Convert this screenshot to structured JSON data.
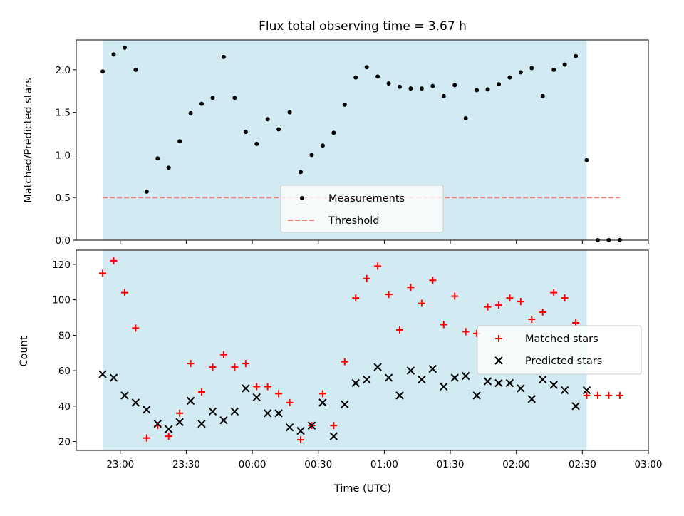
{
  "chart_data": [
    {
      "type": "scatter",
      "title": "Flux total observing time = 3.67 h",
      "xlabel": "",
      "ylabel": "Matched/Predicted stars",
      "ylim": [
        0,
        2.35
      ],
      "yticks": [
        "0.0",
        "0.5",
        "1.0",
        "1.5",
        "2.0"
      ],
      "observing_window": {
        "start": "22:52",
        "end": "02:32",
        "color": "#add8e6"
      },
      "legend": {
        "position": "bottom-center",
        "entries": [
          "Measurements",
          "Threshold"
        ]
      },
      "series": [
        {
          "name": "Measurements",
          "marker": "dot",
          "color": "#000000",
          "points": [
            [
              "22:52",
              1.98
            ],
            [
              "22:57",
              2.18
            ],
            [
              "23:02",
              2.26
            ],
            [
              "23:07",
              2.0
            ],
            [
              "23:12",
              0.57
            ],
            [
              "23:17",
              0.96
            ],
            [
              "23:22",
              0.85
            ],
            [
              "23:27",
              1.16
            ],
            [
              "23:32",
              1.49
            ],
            [
              "23:37",
              1.6
            ],
            [
              "23:42",
              1.67
            ],
            [
              "23:47",
              2.15
            ],
            [
              "23:52",
              1.67
            ],
            [
              "23:57",
              1.27
            ],
            [
              "00:02",
              1.13
            ],
            [
              "00:07",
              1.42
            ],
            [
              "00:12",
              1.3
            ],
            [
              "00:17",
              1.5
            ],
            [
              "00:22",
              0.8
            ],
            [
              "00:27",
              1.0
            ],
            [
              "00:32",
              1.11
            ],
            [
              "00:37",
              1.26
            ],
            [
              "00:42",
              1.59
            ],
            [
              "00:47",
              1.91
            ],
            [
              "00:52",
              2.03
            ],
            [
              "00:57",
              1.92
            ],
            [
              "01:02",
              1.84
            ],
            [
              "01:07",
              1.8
            ],
            [
              "01:12",
              1.78
            ],
            [
              "01:17",
              1.78
            ],
            [
              "01:22",
              1.81
            ],
            [
              "01:27",
              1.69
            ],
            [
              "01:32",
              1.82
            ],
            [
              "01:37",
              1.43
            ],
            [
              "01:42",
              1.76
            ],
            [
              "01:47",
              1.77
            ],
            [
              "01:52",
              1.83
            ],
            [
              "01:57",
              1.91
            ],
            [
              "02:02",
              1.97
            ],
            [
              "02:07",
              2.02
            ],
            [
              "02:12",
              1.69
            ],
            [
              "02:17",
              2.0
            ],
            [
              "02:22",
              2.06
            ],
            [
              "02:27",
              2.16
            ],
            [
              "02:32",
              0.94
            ],
            [
              "02:37",
              0.0
            ],
            [
              "02:42",
              0.0
            ],
            [
              "02:47",
              0.0
            ]
          ]
        },
        {
          "name": "Threshold",
          "style": "dashed",
          "color": "#f08080",
          "points": [
            [
              "22:52",
              0.5
            ],
            [
              "02:47",
              0.5
            ]
          ]
        }
      ]
    },
    {
      "type": "scatter",
      "title": "",
      "xlabel": "Time (UTC)",
      "ylabel": "Count",
      "ylim": [
        15,
        128
      ],
      "yticks": [
        "20",
        "40",
        "60",
        "80",
        "100",
        "120"
      ],
      "xticks": [
        "23:00",
        "23:30",
        "00:00",
        "00:30",
        "01:00",
        "01:30",
        "02:00",
        "02:30",
        "03:00"
      ],
      "xlim": [
        "22:40",
        "03:00"
      ],
      "observing_window": {
        "start": "22:52",
        "end": "02:32",
        "color": "#add8e6"
      },
      "legend": {
        "position": "center-right",
        "entries": [
          "Matched stars",
          "Predicted stars"
        ]
      },
      "series": [
        {
          "name": "Matched stars",
          "marker": "plus",
          "color": "#ff0000",
          "points": [
            [
              "22:52",
              115
            ],
            [
              "22:57",
              122
            ],
            [
              "23:02",
              104
            ],
            [
              "23:07",
              84
            ],
            [
              "23:12",
              22
            ],
            [
              "23:17",
              29
            ],
            [
              "23:22",
              23
            ],
            [
              "23:27",
              36
            ],
            [
              "23:32",
              64
            ],
            [
              "23:37",
              48
            ],
            [
              "23:42",
              62
            ],
            [
              "23:47",
              69
            ],
            [
              "23:52",
              62
            ],
            [
              "23:57",
              64
            ],
            [
              "00:02",
              51
            ],
            [
              "00:07",
              51
            ],
            [
              "00:12",
              47
            ],
            [
              "00:17",
              42
            ],
            [
              "00:22",
              21
            ],
            [
              "00:27",
              29
            ],
            [
              "00:32",
              47
            ],
            [
              "00:37",
              29
            ],
            [
              "00:42",
              65
            ],
            [
              "00:47",
              101
            ],
            [
              "00:52",
              112
            ],
            [
              "00:57",
              119
            ],
            [
              "01:02",
              103
            ],
            [
              "01:07",
              83
            ],
            [
              "01:12",
              107
            ],
            [
              "01:17",
              98
            ],
            [
              "01:22",
              111
            ],
            [
              "01:27",
              86
            ],
            [
              "01:32",
              102
            ],
            [
              "01:37",
              82
            ],
            [
              "01:42",
              81
            ],
            [
              "01:47",
              96
            ],
            [
              "01:52",
              97
            ],
            [
              "01:57",
              101
            ],
            [
              "02:02",
              99
            ],
            [
              "02:07",
              89
            ],
            [
              "02:12",
              93
            ],
            [
              "02:17",
              104
            ],
            [
              "02:22",
              101
            ],
            [
              "02:27",
              87
            ],
            [
              "02:32",
              46
            ],
            [
              "02:37",
              46
            ],
            [
              "02:42",
              46
            ],
            [
              "02:47",
              46
            ]
          ]
        },
        {
          "name": "Predicted stars",
          "marker": "x",
          "color": "#000000",
          "points": [
            [
              "22:52",
              58
            ],
            [
              "22:57",
              56
            ],
            [
              "23:02",
              46
            ],
            [
              "23:07",
              42
            ],
            [
              "23:12",
              38
            ],
            [
              "23:17",
              30
            ],
            [
              "23:22",
              27
            ],
            [
              "23:27",
              31
            ],
            [
              "23:32",
              43
            ],
            [
              "23:37",
              30
            ],
            [
              "23:42",
              37
            ],
            [
              "23:47",
              32
            ],
            [
              "23:52",
              37
            ],
            [
              "23:57",
              50
            ],
            [
              "00:02",
              45
            ],
            [
              "00:07",
              36
            ],
            [
              "00:12",
              36
            ],
            [
              "00:17",
              28
            ],
            [
              "00:22",
              26
            ],
            [
              "00:27",
              29
            ],
            [
              "00:32",
              42
            ],
            [
              "00:37",
              23
            ],
            [
              "00:42",
              41
            ],
            [
              "00:47",
              53
            ],
            [
              "00:52",
              55
            ],
            [
              "00:57",
              62
            ],
            [
              "01:02",
              56
            ],
            [
              "01:07",
              46
            ],
            [
              "01:12",
              60
            ],
            [
              "01:17",
              55
            ],
            [
              "01:22",
              61
            ],
            [
              "01:27",
              51
            ],
            [
              "01:32",
              56
            ],
            [
              "01:37",
              57
            ],
            [
              "01:42",
              46
            ],
            [
              "01:47",
              54
            ],
            [
              "01:52",
              53
            ],
            [
              "01:57",
              53
            ],
            [
              "02:02",
              50
            ],
            [
              "02:07",
              44
            ],
            [
              "02:12",
              55
            ],
            [
              "02:17",
              52
            ],
            [
              "02:22",
              49
            ],
            [
              "02:27",
              40
            ],
            [
              "02:32",
              49
            ]
          ]
        }
      ]
    }
  ]
}
